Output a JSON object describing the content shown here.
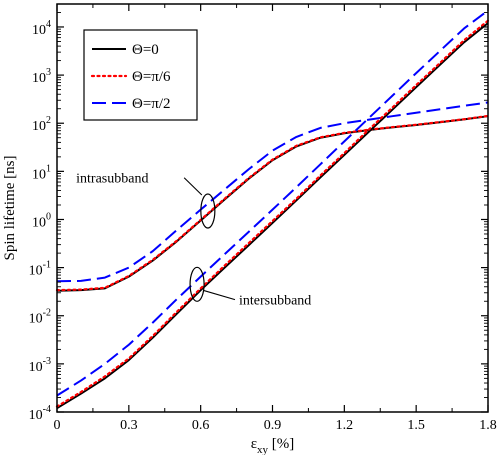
{
  "chart_data": {
    "type": "line",
    "xlabel": "ε",
    "xlabel_sub": "xy",
    "xlabel_unit": " [%]",
    "ylabel": "Spin lifetime [ns]",
    "xlim": [
      0,
      1.8
    ],
    "ylim": [
      0.0001,
      30000
    ],
    "y_scale": "log",
    "x_ticks": [
      0,
      0.3,
      0.6,
      0.9,
      1.2,
      1.5,
      1.8
    ],
    "x_tick_labels": [
      "0",
      "0.3",
      "0.6",
      "0.9",
      "1.2",
      "1.5",
      "1.8"
    ],
    "y_ticks": [
      {
        "value": 0.0001,
        "base": "10",
        "exp": "-4"
      },
      {
        "value": 0.001,
        "base": "10",
        "exp": "-3"
      },
      {
        "value": 0.01,
        "base": "10",
        "exp": "-2"
      },
      {
        "value": 0.1,
        "base": "10",
        "exp": "-1"
      },
      {
        "value": 1,
        "base": "10",
        "exp": "0"
      },
      {
        "value": 10,
        "base": "10",
        "exp": "1"
      },
      {
        "value": 100,
        "base": "10",
        "exp": "2"
      },
      {
        "value": 1000,
        "base": "10",
        "exp": "3"
      },
      {
        "value": 10000,
        "base": "10",
        "exp": "4"
      }
    ],
    "legend_position": "top-left",
    "legend": [
      {
        "label": "Θ=0",
        "color": "#000000",
        "style": "solid"
      },
      {
        "label": "Θ=π/6",
        "color": "#ff0000",
        "style": "dotted"
      },
      {
        "label": "Θ=π/2",
        "color": "#0000ff",
        "style": "dashed"
      }
    ],
    "series": [
      {
        "group": "intrasubband",
        "theta": "Θ=0",
        "color": "#000000",
        "style": "solid",
        "x": [
          0,
          0.1,
          0.2,
          0.3,
          0.4,
          0.5,
          0.6,
          0.7,
          0.8,
          0.9,
          1.0,
          1.1,
          1.2,
          1.3,
          1.4,
          1.5,
          1.6,
          1.7,
          1.8
        ],
        "y": [
          0.033,
          0.034,
          0.037,
          0.065,
          0.14,
          0.35,
          0.95,
          2.6,
          7.0,
          17,
          33,
          50,
          62,
          72,
          82,
          92,
          105,
          120,
          140
        ]
      },
      {
        "group": "intrasubband",
        "theta": "Θ=π/6",
        "color": "#ff0000",
        "style": "dotted",
        "x": [
          0,
          0.1,
          0.2,
          0.3,
          0.4,
          0.5,
          0.6,
          0.7,
          0.8,
          0.9,
          1.0,
          1.1,
          1.2,
          1.3,
          1.4,
          1.5,
          1.6,
          1.7,
          1.8
        ],
        "y": [
          0.034,
          0.035,
          0.038,
          0.067,
          0.145,
          0.36,
          0.98,
          2.7,
          7.2,
          17.5,
          34,
          51,
          63,
          73,
          83,
          93,
          106,
          121,
          142
        ]
      },
      {
        "group": "intrasubband",
        "theta": "Θ=π/2",
        "color": "#0000ff",
        "style": "dashed",
        "x": [
          0,
          0.1,
          0.2,
          0.3,
          0.4,
          0.5,
          0.6,
          0.7,
          0.8,
          0.9,
          1.0,
          1.1,
          1.2,
          1.3,
          1.4,
          1.5,
          1.6,
          1.7,
          1.8
        ],
        "y": [
          0.052,
          0.053,
          0.062,
          0.1,
          0.22,
          0.6,
          1.6,
          4.2,
          11,
          27,
          52,
          80,
          100,
          118,
          140,
          165,
          195,
          230,
          270
        ]
      },
      {
        "group": "intersubband",
        "theta": "Θ=0",
        "color": "#000000",
        "style": "solid",
        "x": [
          0,
          0.1,
          0.2,
          0.3,
          0.4,
          0.5,
          0.6,
          0.7,
          0.8,
          0.9,
          1.0,
          1.1,
          1.2,
          1.3,
          1.4,
          1.5,
          1.6,
          1.7,
          1.8
        ],
        "y": [
          0.00012,
          0.00024,
          0.0005,
          0.0012,
          0.0035,
          0.011,
          0.034,
          0.1,
          0.29,
          0.85,
          2.5,
          7.5,
          22,
          65,
          190,
          560,
          1650,
          4800,
          12000
        ]
      },
      {
        "group": "intersubband",
        "theta": "Θ=π/6",
        "color": "#ff0000",
        "style": "dotted",
        "x": [
          0,
          0.1,
          0.2,
          0.3,
          0.4,
          0.5,
          0.6,
          0.7,
          0.8,
          0.9,
          1.0,
          1.1,
          1.2,
          1.3,
          1.4,
          1.5,
          1.6,
          1.7,
          1.8
        ],
        "y": [
          0.00013,
          0.00026,
          0.00055,
          0.0013,
          0.0038,
          0.012,
          0.037,
          0.11,
          0.32,
          0.93,
          2.7,
          8.2,
          24,
          72,
          210,
          620,
          1800,
          5300,
          13500
        ]
      },
      {
        "group": "intersubband",
        "theta": "Θ=π/2",
        "color": "#0000ff",
        "style": "dashed",
        "x": [
          0,
          0.1,
          0.2,
          0.3,
          0.4,
          0.5,
          0.6,
          0.7,
          0.8,
          0.9,
          1.0,
          1.1,
          1.2,
          1.3,
          1.4,
          1.5,
          1.6,
          1.7,
          1.8
        ],
        "y": [
          0.00022,
          0.00045,
          0.001,
          0.0025,
          0.0072,
          0.022,
          0.065,
          0.19,
          0.55,
          1.6,
          4.7,
          14,
          42,
          125,
          370,
          1100,
          3200,
          9300,
          22000
        ]
      }
    ],
    "annotations": [
      {
        "text": "intrasubband",
        "ellipse_at": {
          "x": 0.63,
          "y": 1.5
        },
        "label_at": {
          "x": 0.08,
          "y": 5.8
        },
        "label_anchor": "start"
      },
      {
        "text": "intersubband",
        "ellipse_at": {
          "x": 0.585,
          "y": 0.045
        },
        "label_at": {
          "x": 0.76,
          "y": 0.017
        },
        "label_anchor": "start"
      }
    ]
  }
}
